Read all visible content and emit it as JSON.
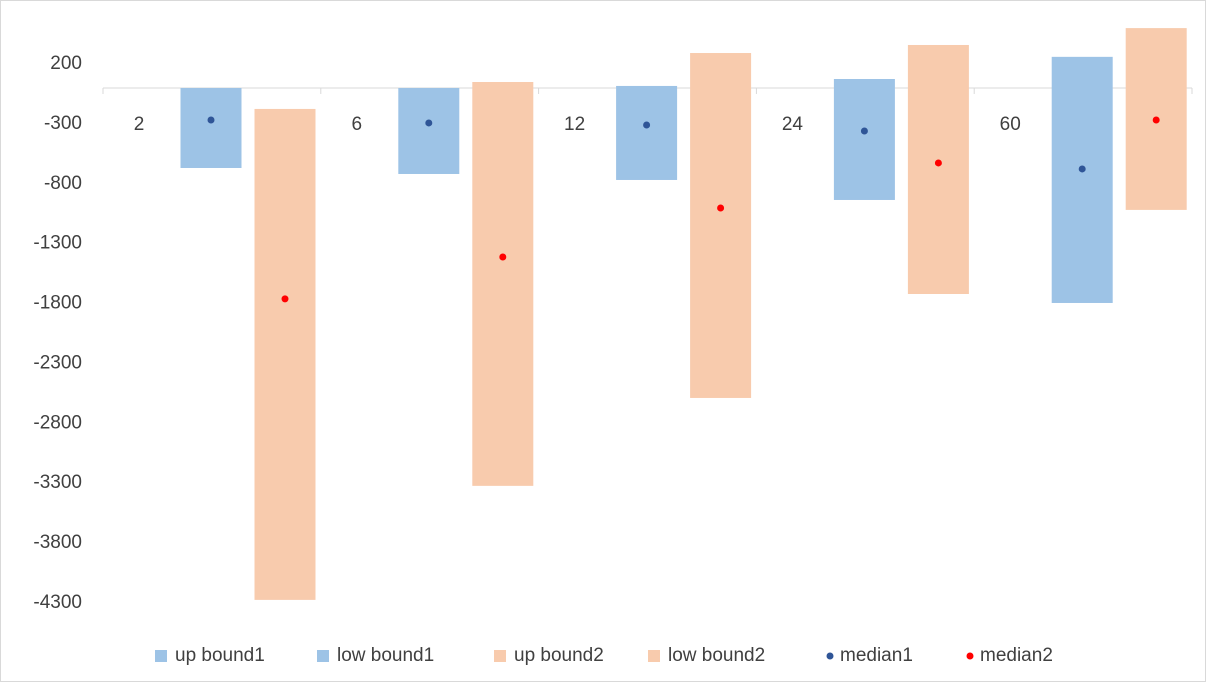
{
  "chart_data": {
    "type": "range_bar",
    "categories": [
      "2",
      "6",
      "12",
      "24",
      "60"
    ],
    "series": [
      {
        "name": "up bound1",
        "color": "#9dc3e6",
        "marker": "square",
        "values": [
          0,
          0,
          17,
          75,
          260
        ]
      },
      {
        "name": "low bound1",
        "color": "#9dc3e6",
        "marker": "square",
        "values": [
          -668,
          -718,
          -768,
          -935,
          -1795
        ]
      },
      {
        "name": "up bound2",
        "color": "#f8cbad",
        "marker": "square",
        "values": [
          -175,
          50,
          292,
          359,
          500
        ]
      },
      {
        "name": "low bound2",
        "color": "#f8cbad",
        "marker": "square",
        "values": [
          -4274,
          -3322,
          -2588,
          -1720,
          -1018
        ]
      },
      {
        "name": "median1",
        "color": "#2f5597",
        "marker": "dot",
        "values": [
          -267,
          -292,
          -309,
          -359,
          -676
        ]
      },
      {
        "name": "median2",
        "color": "#ff0000",
        "marker": "dot",
        "values": [
          -1761,
          -1411,
          -1002,
          -626,
          -267
        ]
      }
    ],
    "ylim": [
      -4300,
      500
    ],
    "yticks": [
      200,
      -300,
      -800,
      -1300,
      -1800,
      -2300,
      -2800,
      -3300,
      -3800,
      -4300
    ],
    "grid": false
  }
}
